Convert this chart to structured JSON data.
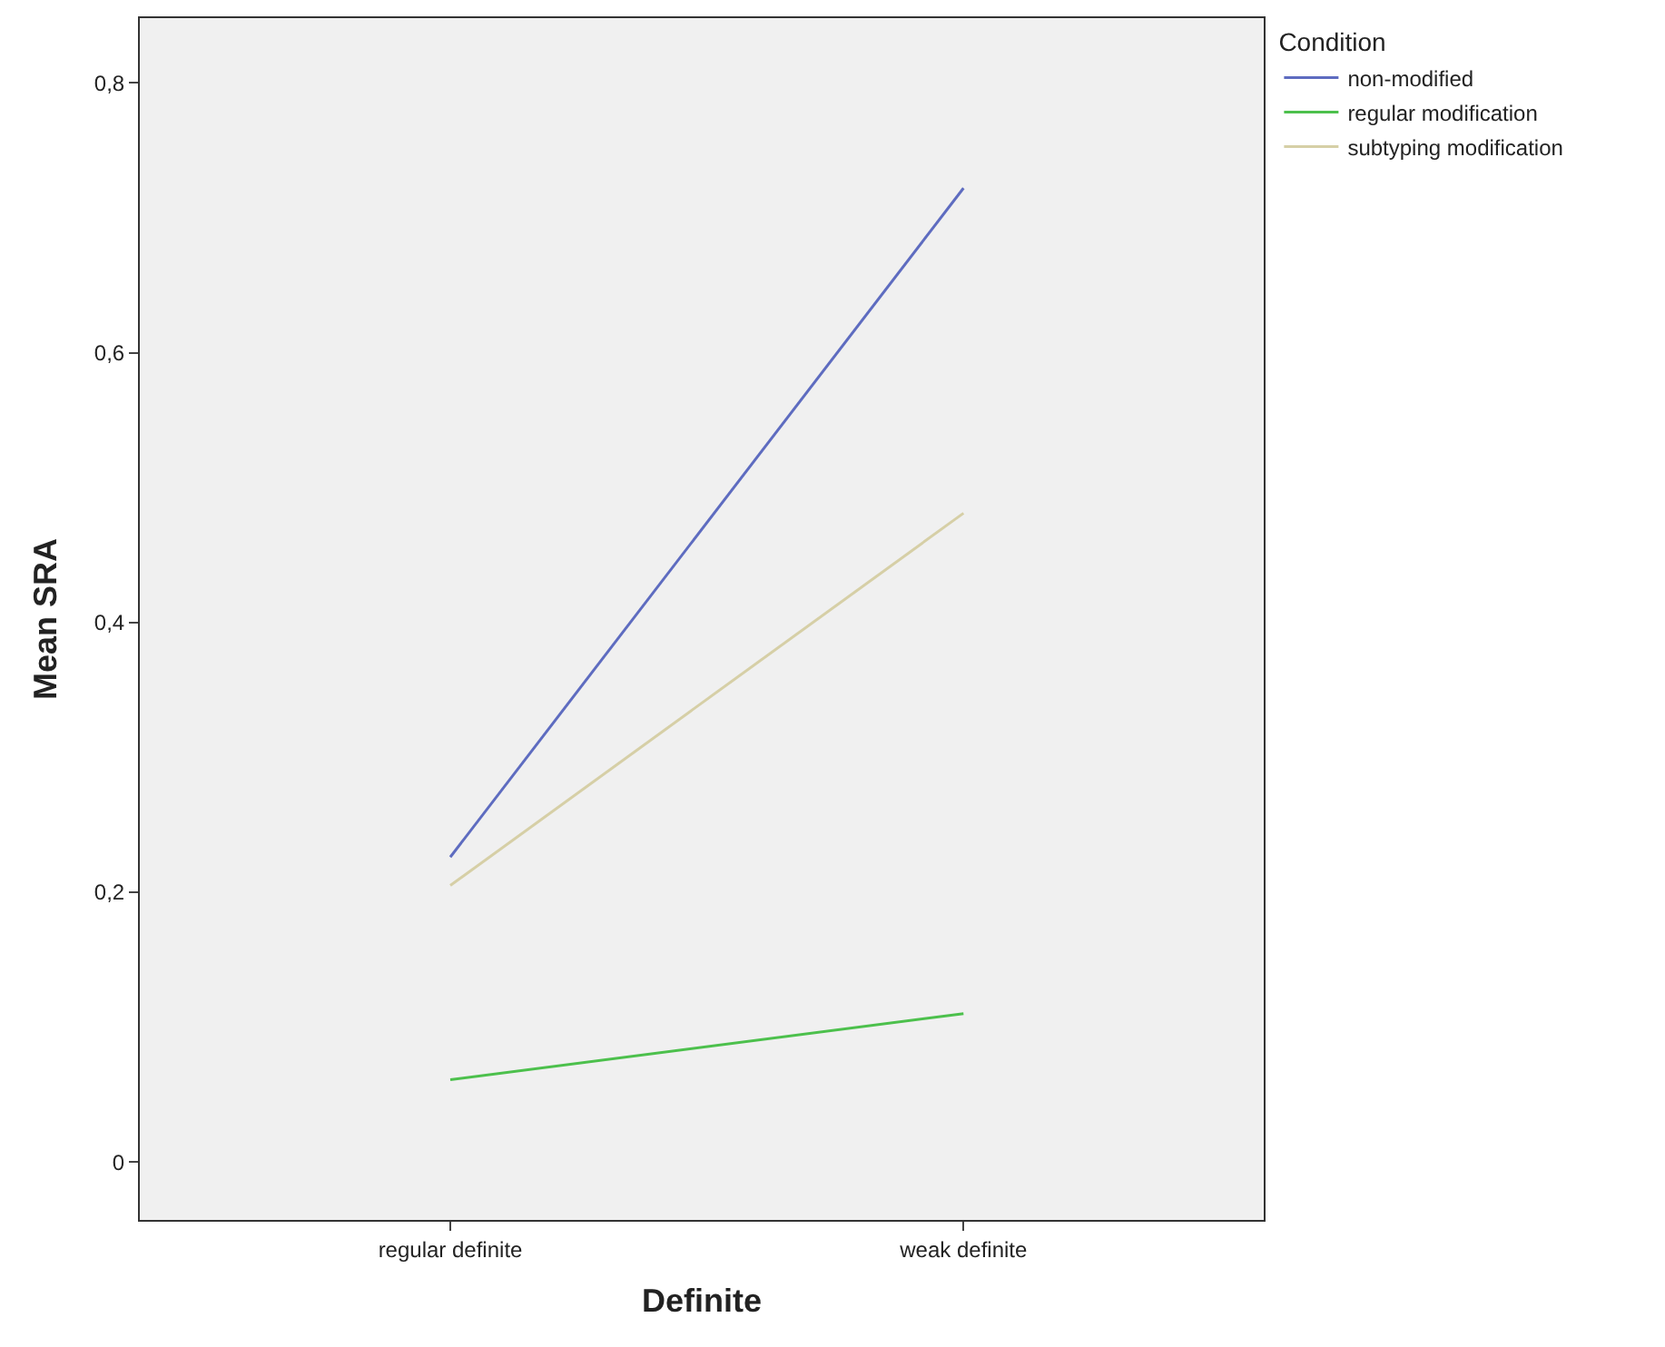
{
  "chart_data": {
    "type": "line",
    "xlabel": "Definite",
    "ylabel": "Mean SRA",
    "legend_title": "Condition",
    "categories": [
      "regular definite",
      "weak definite"
    ],
    "series": [
      {
        "name": "non-modified",
        "color": "#5e6cc0",
        "values": [
          0.226,
          0.722
        ]
      },
      {
        "name": "regular modification",
        "color": "#4cc04c",
        "values": [
          0.061,
          0.11
        ]
      },
      {
        "name": "subtyping modification",
        "color": "#d6cfa6",
        "values": [
          0.205,
          0.481
        ]
      }
    ],
    "ylim": [
      -0.043,
      0.848
    ],
    "yticks": [
      0,
      {
        "value": 0.2,
        "label": "0,2"
      },
      {
        "value": 0.4,
        "label": "0,4"
      },
      {
        "value": 0.6,
        "label": "0,6"
      },
      {
        "value": 0.8,
        "label": "0,8"
      }
    ],
    "grid": false,
    "legend": "top right",
    "marker": "none",
    "line_style": "solid"
  }
}
